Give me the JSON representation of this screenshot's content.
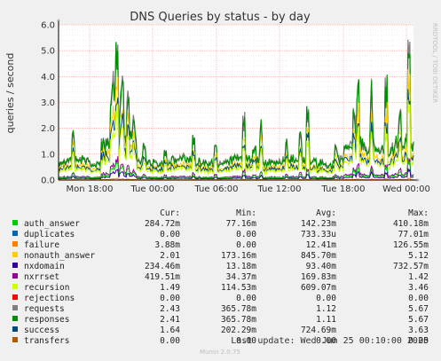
{
  "chart_data": {
    "type": "line",
    "title": "DNS Queries by status - by day",
    "ylabel": "queries / second",
    "side_label": "RRDTOOL / TOBI OETIKER",
    "ylim": [
      0,
      6.0
    ],
    "y_ticks": [
      "0.0",
      "1.0",
      "2.0",
      "3.0",
      "4.0",
      "5.0",
      "6.0"
    ],
    "x_ticks": [
      "Mon 18:00",
      "Tue 00:00",
      "Tue 06:00",
      "Tue 12:00",
      "Tue 18:00",
      "Wed 00:00"
    ],
    "columns": [
      "Cur:",
      "Min:",
      "Avg:",
      "Max:"
    ],
    "series": [
      {
        "name": "auth_answer",
        "color": "#00cc00",
        "cur": "284.72m",
        "min": "77.16m",
        "avg": "142.23m",
        "max": "410.18m"
      },
      {
        "name": "duplicates",
        "color": "#0066b3",
        "cur": "0.00",
        "min": "0.00",
        "avg": "733.33u",
        "max": "77.01m"
      },
      {
        "name": "failure",
        "color": "#ff8000",
        "cur": "3.88m",
        "min": "0.00",
        "avg": "12.41m",
        "max": "126.55m"
      },
      {
        "name": "nonauth_answer",
        "color": "#ffcc00",
        "cur": "2.01",
        "min": "173.16m",
        "avg": "845.70m",
        "max": "5.12"
      },
      {
        "name": "nxdomain",
        "color": "#330099",
        "cur": "234.46m",
        "min": "13.18m",
        "avg": "93.40m",
        "max": "732.57m"
      },
      {
        "name": "nxrrset",
        "color": "#990099",
        "cur": "419.51m",
        "min": "34.37m",
        "avg": "169.83m",
        "max": "1.42"
      },
      {
        "name": "recursion",
        "color": "#ccff00",
        "cur": "1.49",
        "min": "114.53m",
        "avg": "609.07m",
        "max": "3.46"
      },
      {
        "name": "rejections",
        "color": "#ff0000",
        "cur": "0.00",
        "min": "0.00",
        "avg": "0.00",
        "max": "0.00"
      },
      {
        "name": "requests",
        "color": "#808080",
        "cur": "2.43",
        "min": "365.78m",
        "avg": "1.12",
        "max": "5.67"
      },
      {
        "name": "responses",
        "color": "#008f00",
        "cur": "2.41",
        "min": "365.78m",
        "avg": "1.11",
        "max": "5.67"
      },
      {
        "name": "success",
        "color": "#00487d",
        "cur": "1.64",
        "min": "202.29m",
        "avg": "724.69m",
        "max": "3.63"
      },
      {
        "name": "transfers",
        "color": "#b35a00",
        "cur": "0.00",
        "min": "0.00",
        "avg": "0.00",
        "max": "0.00"
      }
    ],
    "last_update": "Last update: Wed Jun 25 00:10:00 2025",
    "version": "Munin 2.0.75"
  }
}
